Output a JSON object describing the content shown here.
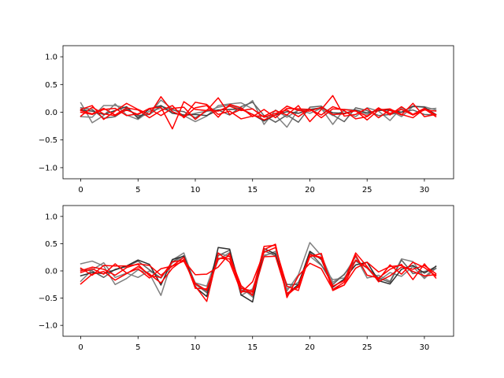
{
  "chart_data": [
    {
      "type": "line",
      "title": "",
      "xlabel": "",
      "ylabel": "",
      "xlim": [
        -1.55,
        32.55
      ],
      "ylim": [
        -1.2,
        1.2
      ],
      "grid": false,
      "legend": "none",
      "x_ticks": [
        0,
        5,
        10,
        15,
        20,
        25,
        30
      ],
      "x_tick_labels": [
        "0",
        "5",
        "10",
        "15",
        "20",
        "25",
        "30"
      ],
      "y_ticks": [
        -1.0,
        -0.5,
        0.0,
        0.5,
        1.0
      ],
      "y_tick_labels": [
        "−1.0",
        "−0.5",
        "0.0",
        "0.5",
        "1.0"
      ],
      "x": [
        0,
        1,
        2,
        3,
        4,
        5,
        6,
        7,
        8,
        9,
        10,
        11,
        12,
        13,
        14,
        15,
        16,
        17,
        18,
        19,
        20,
        21,
        22,
        23,
        24,
        25,
        26,
        27,
        28,
        29,
        30,
        31
      ],
      "series": [
        {
          "color": "#808080",
          "values": [
            0.17,
            -0.19,
            -0.06,
            0.15,
            -0.05,
            -0.13,
            0.02,
            0.07,
            0.01,
            -0.07,
            -0.02,
            0.02,
            0.09,
            0.13,
            0.05,
            0.21,
            -0.22,
            0.04,
            -0.09,
            0.04,
            0.05,
            0.06,
            -0.06,
            0.02,
            -0.08,
            0.08,
            0.02,
            -0.15,
            0.08,
            -0.04,
            0.05,
            0.07
          ]
        },
        {
          "color": "#808080",
          "values": [
            -0.08,
            -0.09,
            0.12,
            0.12,
            0.08,
            -0.08,
            -0.03,
            0.22,
            0.06,
            -0.06,
            -0.17,
            -0.07,
            0.12,
            0.15,
            0.17,
            0.06,
            -0.09,
            -0.05,
            -0.27,
            0.05,
            -0.02,
            0.07,
            -0.22,
            0.05,
            0.04,
            -0.04,
            0.06,
            0.03,
            -0.08,
            0.1,
            0.1,
            0.04
          ]
        },
        {
          "color": "#606060",
          "values": [
            0.08,
            0.05,
            -0.11,
            -0.08,
            0.06,
            -0.06,
            -0.04,
            0.11,
            0.04,
            0.01,
            -0.1,
            0.02,
            0.04,
            -0.05,
            0.1,
            0.18,
            -0.06,
            -0.18,
            -0.05,
            -0.18,
            0.09,
            0.11,
            -0.05,
            -0.17,
            0.08,
            0.03,
            -0.06,
            -0.04,
            0.0,
            0.04,
            -0.04,
            -0.05
          ]
        },
        {
          "color": "#404040",
          "values": [
            0.04,
            0.02,
            -0.04,
            0.03,
            0.1,
            -0.11,
            0.06,
            0.12,
            -0.02,
            -0.05,
            -0.04,
            -0.06,
            0.04,
            0.05,
            0.06,
            -0.04,
            -0.16,
            -0.05,
            0.01,
            -0.02,
            0.05,
            0.08,
            -0.01,
            -0.02,
            0.04,
            -0.01,
            0.03,
            0.04,
            0.0,
            0.11,
            0.09,
            -0.04
          ]
        },
        {
          "color": "#ff0000",
          "values": [
            0.05,
            0.12,
            -0.13,
            0.02,
            0.16,
            0.05,
            -0.04,
            0.28,
            0.01,
            -0.08,
            0.18,
            0.14,
            -0.04,
            0.02,
            -0.12,
            -0.07,
            -0.07,
            0.03,
            -0.05,
            0.12,
            -0.17,
            0.05,
            0.3,
            -0.07,
            -0.04,
            0.07,
            -0.1,
            0.04,
            -0.05,
            0.16,
            -0.08,
            -0.04
          ]
        },
        {
          "color": "#ff0000",
          "values": [
            -0.07,
            0.09,
            -0.03,
            -0.06,
            0.04,
            -0.04,
            0.07,
            0.09,
            -0.3,
            0.19,
            0.05,
            0.03,
            0.26,
            -0.04,
            0.05,
            -0.04,
            -0.14,
            -0.05,
            0.11,
            0.03,
            0.02,
            0.09,
            -0.04,
            -0.03,
            0.03,
            -0.14,
            0.04,
            0.06,
            -0.04,
            -0.1,
            0.06,
            -0.08
          ]
        },
        {
          "color": "#ff0000",
          "values": [
            0.03,
            -0.03,
            0.07,
            -0.05,
            0.08,
            0.04,
            -0.1,
            0.03,
            0.12,
            -0.1,
            0.08,
            0.12,
            -0.09,
            0.14,
            0.08,
            -0.08,
            0.05,
            -0.1,
            0.07,
            0.06,
            0.05,
            -0.05,
            0.1,
            0.03,
            -0.12,
            -0.08,
            0.07,
            -0.02,
            0.05,
            -0.05,
            0.04,
            0.02
          ]
        },
        {
          "color": "#ff0000",
          "values": [
            0.0,
            -0.04,
            0.05,
            0.07,
            -0.06,
            -0.03,
            0.06,
            -0.06,
            0.07,
            0.09,
            -0.13,
            0.04,
            0.02,
            0.11,
            0.03,
            0.06,
            -0.09,
            -0.02,
            0.04,
            -0.08,
            0.06,
            -0.1,
            0.06,
            0.05,
            0.02,
            -0.07,
            0.08,
            -0.05,
            0.1,
            -0.04,
            0.07,
            -0.05
          ]
        }
      ]
    },
    {
      "type": "line",
      "title": "",
      "xlabel": "",
      "ylabel": "",
      "xlim": [
        -1.55,
        32.55
      ],
      "ylim": [
        -1.2,
        1.2
      ],
      "grid": false,
      "legend": "none",
      "x_ticks": [
        0,
        5,
        10,
        15,
        20,
        25,
        30
      ],
      "x_tick_labels": [
        "0",
        "5",
        "10",
        "15",
        "20",
        "25",
        "30"
      ],
      "y_ticks": [
        -1.0,
        -0.5,
        0.0,
        0.5,
        1.0
      ],
      "y_tick_labels": [
        "−1.0",
        "−0.5",
        "0.0",
        "0.5",
        "1.0"
      ],
      "x": [
        0,
        1,
        2,
        3,
        4,
        5,
        6,
        7,
        8,
        9,
        10,
        11,
        12,
        13,
        14,
        15,
        16,
        17,
        18,
        19,
        20,
        21,
        22,
        23,
        24,
        25,
        26,
        27,
        28,
        29,
        30,
        31
      ],
      "series": [
        {
          "color": "#808080",
          "values": [
            0.13,
            0.18,
            0.09,
            -0.25,
            -0.14,
            0.02,
            -0.05,
            -0.45,
            0.2,
            0.33,
            -0.25,
            -0.37,
            0.2,
            0.34,
            -0.45,
            -0.33,
            0.29,
            0.33,
            -0.37,
            -0.07,
            0.52,
            0.28,
            -0.21,
            -0.07,
            0.26,
            -0.13,
            -0.08,
            -0.19,
            0.22,
            0.17,
            -0.12,
            0.09
          ]
        },
        {
          "color": "#808080",
          "values": [
            -0.19,
            0.02,
            0.15,
            -0.12,
            -0.04,
            -0.12,
            0.0,
            -0.13,
            0.15,
            0.25,
            -0.22,
            -0.28,
            0.32,
            0.27,
            -0.3,
            -0.48,
            0.27,
            0.36,
            -0.33,
            -0.21,
            0.27,
            0.1,
            -0.16,
            -0.13,
            0.18,
            0.05,
            -0.18,
            -0.03,
            -0.1,
            0.08,
            -0.14,
            0.05
          ]
        },
        {
          "color": "#606060",
          "values": [
            0.03,
            0.0,
            -0.12,
            0.03,
            0.08,
            0.18,
            0.02,
            -0.13,
            0.17,
            0.28,
            -0.24,
            -0.4,
            0.28,
            0.38,
            -0.35,
            -0.43,
            0.37,
            0.28,
            -0.25,
            -0.25,
            0.34,
            0.11,
            -0.25,
            -0.06,
            0.19,
            0.06,
            -0.13,
            -0.21,
            0.2,
            -0.05,
            -0.01,
            0.04
          ]
        },
        {
          "color": "#303030",
          "values": [
            -0.09,
            -0.03,
            -0.05,
            0.02,
            0.09,
            0.2,
            0.12,
            -0.26,
            0.21,
            0.27,
            -0.3,
            -0.47,
            0.43,
            0.4,
            -0.44,
            -0.57,
            0.41,
            0.31,
            -0.42,
            -0.25,
            0.36,
            0.21,
            -0.3,
            -0.15,
            0.11,
            0.16,
            -0.18,
            -0.24,
            0.03,
            0.1,
            -0.04,
            0.08
          ]
        },
        {
          "color": "#ff0000",
          "values": [
            -0.24,
            -0.06,
            -0.01,
            -0.17,
            -0.05,
            0.08,
            -0.06,
            -0.22,
            0.05,
            0.21,
            -0.28,
            -0.56,
            0.33,
            0.16,
            -0.38,
            -0.39,
            0.45,
            0.47,
            -0.49,
            -0.09,
            0.14,
            0.04,
            -0.34,
            -0.21,
            0.29,
            -0.08,
            -0.13,
            0.03,
            0.12,
            -0.16,
            0.13,
            -0.13
          ]
        },
        {
          "color": "#ff0000",
          "values": [
            0.05,
            -0.08,
            0.1,
            0.09,
            0.09,
            0.12,
            -0.09,
            -0.12,
            0.17,
            0.19,
            -0.07,
            -0.06,
            0.07,
            0.32,
            -0.4,
            -0.2,
            0.34,
            0.43,
            -0.28,
            -0.36,
            0.3,
            0.25,
            -0.28,
            -0.18,
            0.33,
            0.08,
            -0.2,
            -0.09,
            0.07,
            0.03,
            0.1,
            -0.05
          ]
        },
        {
          "color": "#ff0000",
          "values": [
            -0.03,
            0.04,
            -0.06,
            0.13,
            -0.04,
            0.04,
            -0.13,
            0.04,
            0.09,
            0.25,
            -0.32,
            -0.33,
            0.22,
            0.27,
            -0.27,
            -0.45,
            0.26,
            0.27,
            -0.41,
            -0.3,
            0.26,
            0.32,
            -0.36,
            -0.26,
            0.05,
            0.16,
            -0.02,
            0.08,
            0.1,
            -0.01,
            -0.09,
            -0.07
          ]
        },
        {
          "color": "#ff0000",
          "values": [
            0.0,
            0.07,
            0.03,
            -0.08,
            0.06,
            0.13,
            0.1,
            -0.08,
            0.09,
            0.18,
            -0.23,
            -0.36,
            0.23,
            0.22,
            -0.32,
            -0.37,
            0.39,
            0.49,
            -0.45,
            -0.27,
            0.3,
            0.23,
            -0.34,
            -0.26,
            0.2,
            0.06,
            -0.16,
            0.11,
            -0.06,
            0.16,
            0.06,
            -0.09
          ]
        }
      ]
    }
  ]
}
